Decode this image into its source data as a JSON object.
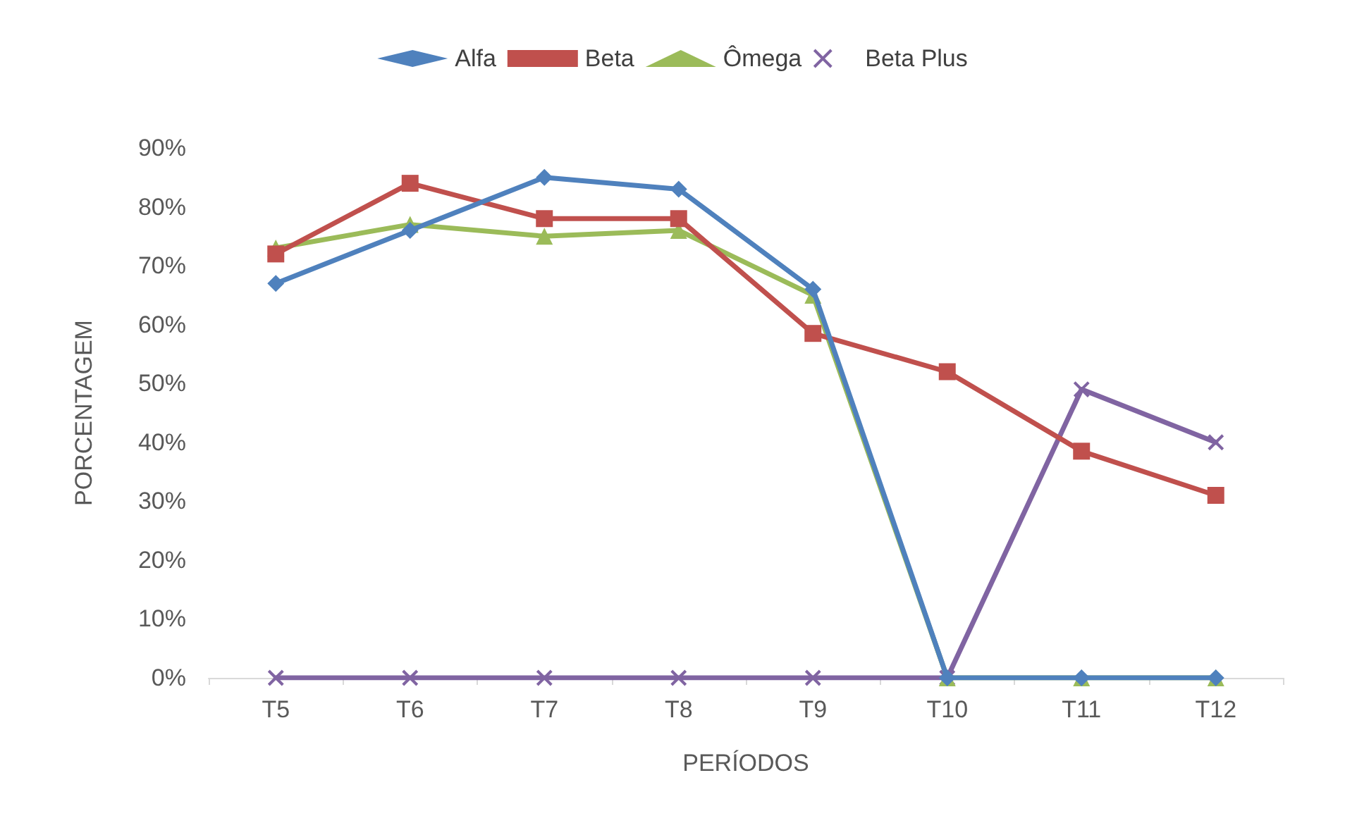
{
  "chart_data": {
    "type": "line",
    "xlabel": "PERÍODOS",
    "ylabel": "PORCENTAGEM",
    "categories": [
      "T5",
      "T6",
      "T7",
      "T8",
      "T9",
      "T10",
      "T11",
      "T12"
    ],
    "series": [
      {
        "name": "Alfa",
        "color": "#4f81bd",
        "marker": "diamond",
        "values": [
          67,
          76,
          85,
          83,
          66,
          0,
          0,
          0
        ]
      },
      {
        "name": "Beta",
        "color": "#c0504d",
        "marker": "square",
        "values": [
          72,
          84,
          78,
          78,
          58.5,
          52,
          38.5,
          31
        ]
      },
      {
        "name": "Ômega",
        "color": "#9bbb59",
        "marker": "triangle",
        "values": [
          73,
          77,
          75,
          76,
          65,
          0,
          0,
          0
        ]
      },
      {
        "name": "Beta Plus",
        "color": "#8064a2",
        "marker": "cross",
        "values": [
          0,
          0,
          0,
          0,
          0,
          0,
          49,
          40
        ]
      }
    ],
    "ylim": [
      0,
      90
    ],
    "yticks": [
      {
        "value": 0,
        "label": "0%"
      },
      {
        "value": 10,
        "label": "10%"
      },
      {
        "value": 20,
        "label": "20%"
      },
      {
        "value": 30,
        "label": "30%"
      },
      {
        "value": 40,
        "label": "40%"
      },
      {
        "value": 50,
        "label": "50%"
      },
      {
        "value": 60,
        "label": "60%"
      },
      {
        "value": 70,
        "label": "70%"
      },
      {
        "value": 80,
        "label": "80%"
      },
      {
        "value": 90,
        "label": "90%"
      }
    ],
    "grid": false,
    "legend": "top",
    "line_style": "solid"
  }
}
